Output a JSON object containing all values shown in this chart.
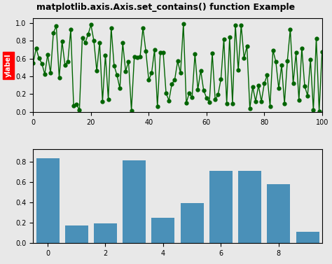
{
  "title": "matplotlib.axis.Axis.set_contains() function Example",
  "title_fontsize": 9,
  "title_fontweight": "bold",
  "line_color": "#006400",
  "line_marker": "o",
  "line_markersize": 3.5,
  "line_linewidth": 1.0,
  "ylim_line": [
    0.0,
    1.05
  ],
  "xlim_line": [
    0,
    100
  ],
  "ylabel_label": "ylabel",
  "ylabel_color": "white",
  "ylabel_bg_color": "red",
  "ylabel_fontsize": 7,
  "bar_values": [
    0.83,
    0.17,
    0.19,
    0.81,
    0.25,
    0.39,
    0.71,
    0.71,
    0.58,
    0.11
  ],
  "bar_color": "#4a90b8",
  "bar_x": [
    0,
    1,
    2,
    3,
    4,
    5,
    6,
    7,
    8,
    9
  ],
  "ylim_bar": [
    0.0,
    0.92
  ],
  "xlim_bar": [
    -0.5,
    9.5
  ],
  "bg_color": "#e8e8e8",
  "tick_fontsize": 7,
  "seed": 0
}
